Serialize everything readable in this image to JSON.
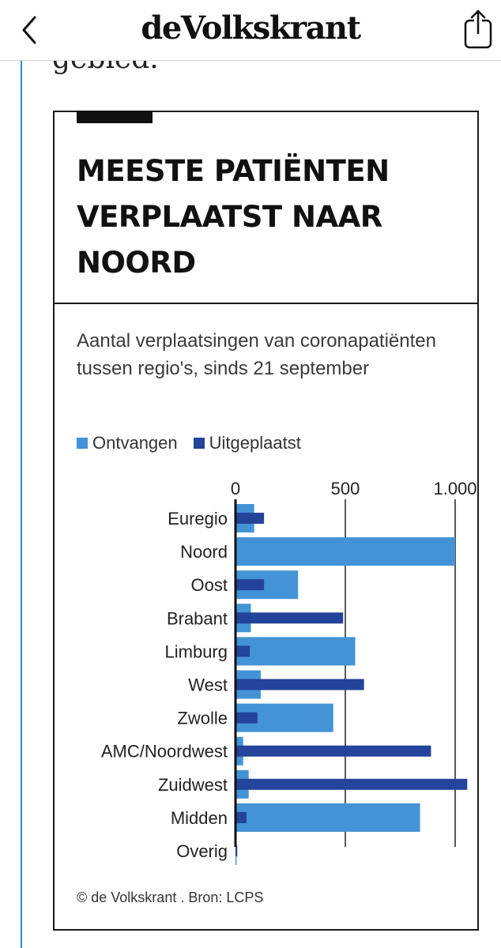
{
  "header": {
    "logo": "deVolkskrant",
    "back_icon": "chevron-left-icon",
    "share_icon": "share-icon"
  },
  "article": {
    "previous_text": "gebied."
  },
  "card": {
    "title_lines": [
      "MEESTE PATIËNTEN",
      "VERPLAATST NAAR",
      "NOORD"
    ],
    "subtitle": "Aantal verplaatsingen van coronapatiënten tussen regio's, sinds 21 september",
    "credit": "© de Volkskrant . Bron: LCPS"
  },
  "colors": {
    "accent_rule": "#2c8bd0",
    "ontvangen": "#4393d6",
    "uitgeplaatst": "#24439a"
  },
  "chart_data": {
    "type": "bar",
    "orientation": "horizontal",
    "categories": [
      "Euregio",
      "Noord",
      "Oost",
      "Brabant",
      "Limburg",
      "West",
      "Zwolle",
      "AMC/Noordwest",
      "Zuidwest",
      "Midden",
      "Overig"
    ],
    "series": [
      {
        "name": "Ontvangen",
        "values": [
          85,
          1000,
          285,
          70,
          545,
          115,
          445,
          35,
          60,
          840,
          5
        ]
      },
      {
        "name": "Uitgeplaatst",
        "values": [
          130,
          0,
          130,
          490,
          65,
          585,
          100,
          890,
          1055,
          50,
          8
        ]
      }
    ],
    "xticks": [
      "0",
      "500",
      "1.000"
    ],
    "xtick_values": [
      0,
      500,
      1000
    ],
    "xlim": [
      0,
      1100
    ],
    "grid": true,
    "legend_position": "top-left"
  }
}
